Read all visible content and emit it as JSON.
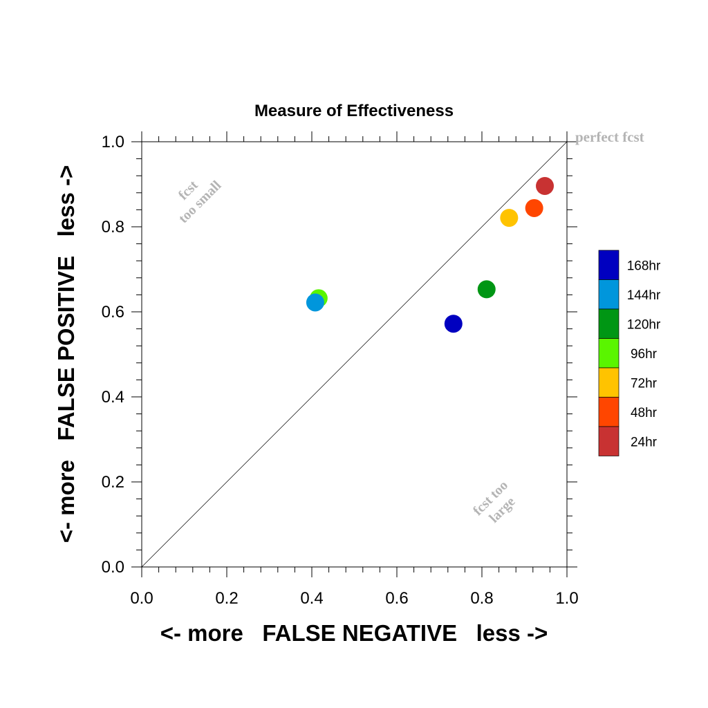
{
  "chart_data": {
    "type": "scatter",
    "title": "Measure of Effectiveness",
    "xlabel": "<- more   FALSE NEGATIVE   less ->",
    "ylabel": "<- more   FALSE POSITIVE   less ->",
    "xlim": [
      0,
      1
    ],
    "ylim": [
      0,
      1
    ],
    "xticks": [
      "0.0",
      "0.2",
      "0.4",
      "0.6",
      "0.8",
      "1.0"
    ],
    "yticks": [
      "0.0",
      "0.2",
      "0.4",
      "0.6",
      "0.8",
      "1.0"
    ],
    "grid": false,
    "reference_line": "diagonal",
    "legend_position": "right",
    "annotations": {
      "perfect": "perfect fcst",
      "small_line1": "fcst",
      "small_line2": "too small",
      "large_line1": "fcst too",
      "large_line2": "large"
    },
    "series": [
      {
        "name": "168hr",
        "color": "#0000c0",
        "x": 0.733,
        "y": 0.572
      },
      {
        "name": "144hr",
        "color": "#0096dc",
        "x": 0.408,
        "y": 0.622
      },
      {
        "name": "120hr",
        "color": "#009614",
        "x": 0.811,
        "y": 0.653
      },
      {
        "name": "96hr",
        "color": "#5af500",
        "x": 0.416,
        "y": 0.632
      },
      {
        "name": "72hr",
        "color": "#ffc300",
        "x": 0.864,
        "y": 0.821
      },
      {
        "name": "48hr",
        "color": "#ff4600",
        "x": 0.923,
        "y": 0.844
      },
      {
        "name": "24hr",
        "color": "#c83232",
        "x": 0.948,
        "y": 0.896
      }
    ]
  }
}
